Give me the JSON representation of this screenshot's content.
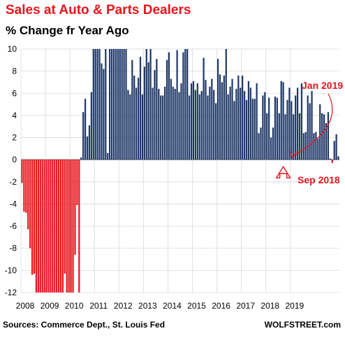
{
  "chart_data": {
    "type": "bar",
    "title": "Sales at Auto & Parts Dealers",
    "subtitle": "% Change fr Year Ago",
    "xlabel": "",
    "ylabel": "",
    "ylim": [
      -12,
      10
    ],
    "yticks": [
      10,
      8,
      6,
      4,
      2,
      0,
      -2,
      -4,
      -6,
      -8,
      -10,
      -12
    ],
    "xticks": [
      "2008",
      "2009",
      "2010",
      "2011",
      "2012",
      "2013",
      "2014",
      "2015",
      "2016",
      "2017",
      "2018",
      "2019"
    ],
    "grid": true,
    "start": "2008-01",
    "values": [
      -2.1,
      -4.7,
      -4.8,
      -6.3,
      -8,
      -10.4,
      -10.3,
      -12,
      -12,
      -12,
      -12,
      -12,
      -12,
      -12,
      -12,
      -12,
      -12,
      -12,
      -12,
      -12,
      -12,
      -10.3,
      -12,
      -12,
      -12,
      -12,
      -8.6,
      -4.1,
      -12,
      0.2,
      4.3,
      5.5,
      2.1,
      3.1,
      6.1,
      10,
      10,
      10,
      10,
      8.7,
      8.2,
      10,
      0.6,
      10,
      10,
      10,
      10,
      10,
      10,
      10,
      10,
      10,
      6.3,
      5.9,
      9,
      7.6,
      6.5,
      7.4,
      9.3,
      5.9,
      8.4,
      10,
      8.8,
      10,
      6.5,
      8.1,
      9.1,
      6.4,
      5.8,
      5.8,
      6.6,
      9,
      9.7,
      7.3,
      6.6,
      6.4,
      9.9,
      6.1,
      6.9,
      9.7,
      10,
      10,
      5.8,
      6.9,
      7.1,
      6.3,
      6.9,
      5.9,
      6.2,
      9.2,
      7.2,
      5.8,
      6.6,
      7.3,
      6.3,
      5.1,
      9.1,
      7.7,
      7,
      7.6,
      10,
      5.9,
      6.6,
      7.3,
      5.3,
      6.4,
      7.6,
      6.5,
      7.6,
      6.2,
      5.4,
      7.1,
      6.5,
      5.5,
      5.5,
      6.9,
      2.4,
      2.9,
      5.8,
      6.1,
      4.2,
      5.6,
      2,
      2.9,
      5.7,
      5.6,
      4.2,
      7.1,
      7,
      4.1,
      5.4,
      6.5,
      5.3,
      4.1,
      5.8,
      6.5,
      4.2,
      6.9,
      2.4,
      2.5,
      5.8,
      5.1,
      6.2,
      2.4,
      2.5,
      1.9,
      5,
      4.2,
      4.1,
      3.3,
      4.3,
      0.1,
      -0.3,
      1.7,
      2.3,
      0.3
    ],
    "highlight_months": [
      {
        "label": "Sep 2018",
        "color": "#e8141c"
      }
    ],
    "colors": {
      "positive": "#1f3868",
      "negative": "#e8141c",
      "grid": "#d9d9d9",
      "annotation": "#e8141c"
    }
  },
  "annotations": {
    "jan2019": "Jan 2019",
    "sep2018": "Sep 2018"
  },
  "footer": {
    "source": "Sources: Commerce Dept., St. Louis Fed",
    "brand": "WOLFSTREET.com"
  }
}
